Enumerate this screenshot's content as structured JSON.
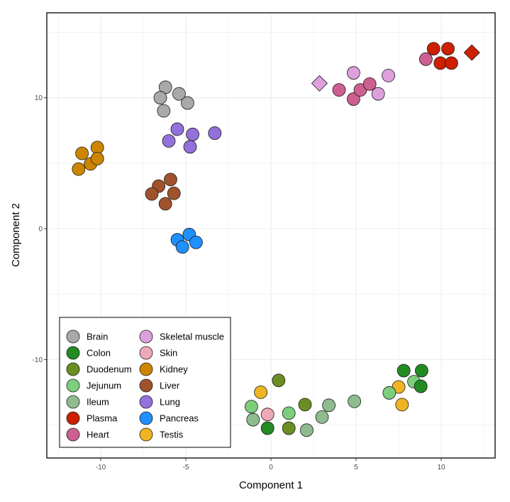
{
  "chart_data": {
    "type": "scatter",
    "title": "",
    "xlabel": "Component 1",
    "ylabel": "Component 2",
    "xlim": [
      -13.2,
      13.2
    ],
    "ylim": [
      -17.9,
      16.2
    ],
    "xticks": [
      -10,
      -5,
      0,
      5,
      10
    ],
    "yticks": [
      -10,
      0,
      10
    ],
    "xtick_labels": [
      "-10",
      "-5",
      "0",
      "5",
      "10"
    ],
    "ytick_labels": [
      "-10",
      "0",
      "10"
    ],
    "grid": true,
    "legend": {
      "position": "bottom-left",
      "columns": 2,
      "entries": [
        {
          "name": "Brain",
          "color": "#A9A9A9"
        },
        {
          "name": "Colon",
          "color": "#228B22"
        },
        {
          "name": "Duodenum",
          "color": "#6B8E23"
        },
        {
          "name": "Jejunum",
          "color": "#7CCD7C"
        },
        {
          "name": "Ileum",
          "color": "#8FBC8F"
        },
        {
          "name": "Plasma",
          "color": "#CD2000"
        },
        {
          "name": "Heart",
          "color": "#CD6090"
        },
        {
          "name": "Skeletal muscle",
          "color": "#DDA0DD"
        },
        {
          "name": "Skin",
          "color": "#EEA9B8"
        },
        {
          "name": "Kidney",
          "color": "#CD8500"
        },
        {
          "name": "Liver",
          "color": "#A0522D"
        },
        {
          "name": "Lung",
          "color": "#9370DB"
        },
        {
          "name": "Pancreas",
          "color": "#1E90FF"
        },
        {
          "name": "Testis",
          "color": "#EEB422"
        }
      ]
    },
    "series": [
      {
        "name": "Brain",
        "points": [
          [
            -6.2,
            10.8
          ],
          [
            -6.5,
            10.0
          ],
          [
            -5.4,
            10.3
          ],
          [
            -4.9,
            9.6
          ],
          [
            -6.3,
            9.0
          ]
        ]
      },
      {
        "name": "Lung",
        "points": [
          [
            -5.5,
            7.6
          ],
          [
            -6.0,
            6.7
          ],
          [
            -4.6,
            7.2
          ],
          [
            -4.75,
            6.25
          ],
          [
            -3.3,
            7.3
          ]
        ]
      },
      {
        "name": "Kidney",
        "points": [
          [
            -11.1,
            5.75
          ],
          [
            -10.2,
            6.2
          ],
          [
            -10.6,
            4.95
          ],
          [
            -10.2,
            5.35
          ],
          [
            -11.3,
            4.55
          ]
        ]
      },
      {
        "name": "Liver",
        "points": [
          [
            -5.9,
            3.75
          ],
          [
            -6.6,
            3.25
          ],
          [
            -7.0,
            2.65
          ],
          [
            -5.7,
            2.7
          ],
          [
            -6.2,
            1.9
          ]
        ]
      },
      {
        "name": "Pancreas",
        "points": [
          [
            -4.8,
            -0.45
          ],
          [
            -5.5,
            -0.85
          ],
          [
            -4.4,
            -1.05
          ],
          [
            -5.2,
            -1.4
          ]
        ]
      },
      {
        "name": "Plasma",
        "points": [
          [
            9.55,
            13.75
          ],
          [
            10.4,
            13.75
          ],
          [
            9.95,
            12.65
          ],
          [
            10.6,
            12.65
          ]
        ],
        "diamond_points": [
          [
            11.8,
            13.45
          ]
        ]
      },
      {
        "name": "Heart",
        "points": [
          [
            9.1,
            12.95
          ],
          [
            4.0,
            10.6
          ],
          [
            4.85,
            9.9
          ],
          [
            5.25,
            10.6
          ],
          [
            5.8,
            11.05
          ]
        ]
      },
      {
        "name": "Skeletal muscle",
        "points": [
          [
            4.85,
            11.9
          ],
          [
            6.9,
            11.7
          ],
          [
            6.3,
            10.3
          ]
        ],
        "diamond_points": [
          [
            2.85,
            11.1
          ]
        ]
      },
      {
        "name": "Duodenum",
        "points": [
          [
            0.45,
            -11.6
          ],
          [
            2.0,
            -13.45
          ],
          [
            1.05,
            -15.25
          ]
        ]
      },
      {
        "name": "Testis",
        "points": [
          [
            -0.6,
            -12.5
          ],
          [
            7.5,
            -12.1
          ],
          [
            7.7,
            -13.45
          ]
        ]
      },
      {
        "name": "Jejunum",
        "points": [
          [
            -1.15,
            -13.6
          ],
          [
            1.05,
            -14.1
          ],
          [
            8.4,
            -11.7
          ],
          [
            6.95,
            -12.55
          ]
        ]
      },
      {
        "name": "Ileum",
        "points": [
          [
            -1.05,
            -14.6
          ],
          [
            2.1,
            -15.4
          ],
          [
            3.0,
            -14.4
          ],
          [
            3.4,
            -13.5
          ],
          [
            4.9,
            -13.2
          ]
        ]
      },
      {
        "name": "Skin",
        "points": [
          [
            -0.2,
            -14.2
          ]
        ]
      },
      {
        "name": "Colon",
        "points": [
          [
            -0.2,
            -15.25
          ],
          [
            7.8,
            -10.85
          ],
          [
            8.85,
            -10.85
          ],
          [
            8.8,
            -12.05
          ]
        ]
      }
    ]
  }
}
